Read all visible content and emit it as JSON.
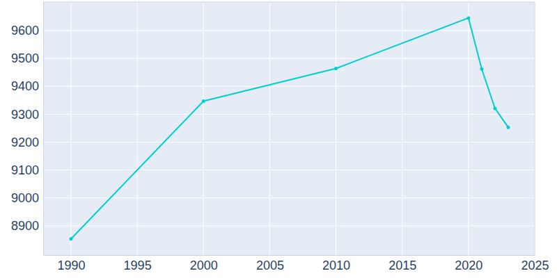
{
  "chart_data": {
    "type": "line",
    "x": [
      1990,
      2000,
      2010,
      2020,
      2021,
      2022,
      2023
    ],
    "values": [
      8853,
      9347,
      9464,
      9645,
      9462,
      9321,
      9253
    ],
    "color": "#00ced1",
    "marker": "circle",
    "xlim": [
      1987.9,
      2025
    ],
    "ylim": [
      8795,
      9702
    ],
    "xticks": [
      1990,
      1995,
      2000,
      2005,
      2010,
      2015,
      2020,
      2025
    ],
    "yticks": [
      8900,
      9000,
      9100,
      9200,
      9300,
      9400,
      9500,
      9600
    ],
    "grid": true
  }
}
